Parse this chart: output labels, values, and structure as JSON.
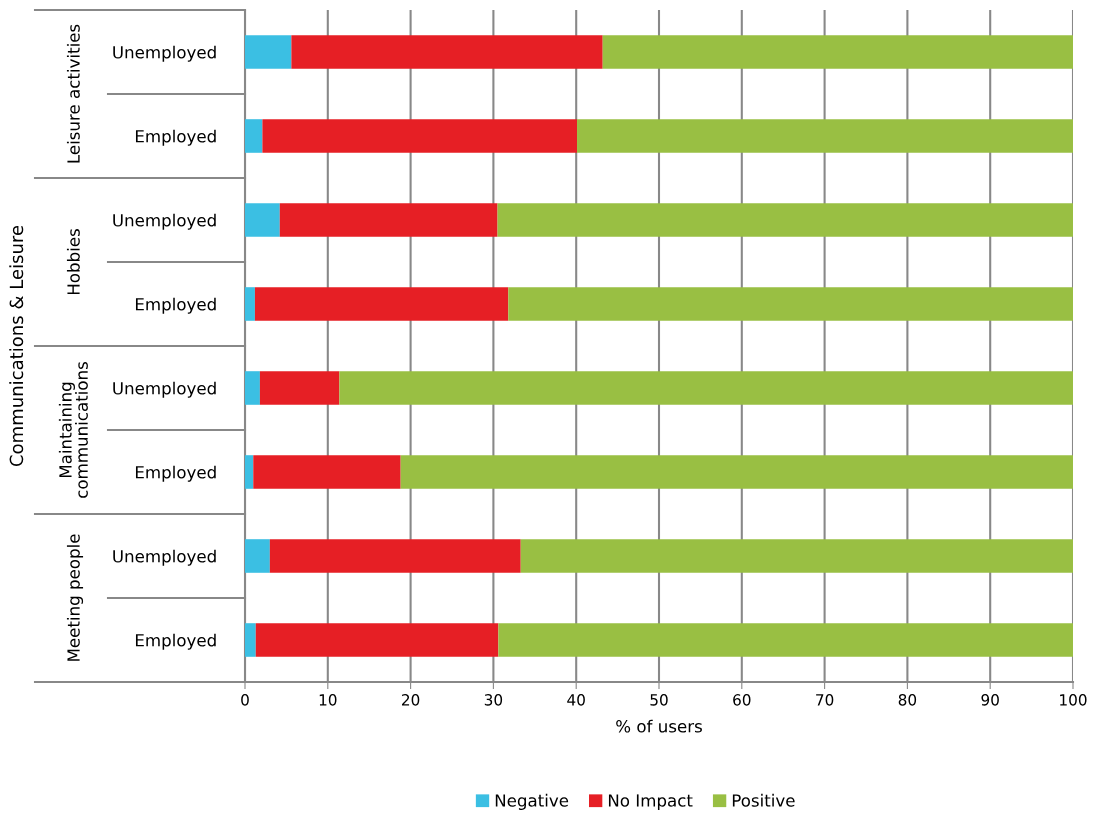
{
  "chart_data": {
    "type": "bar",
    "orientation": "horizontal",
    "stacked": true,
    "ylabel": "Communications & Leisure",
    "xlabel": "% of users",
    "categories": [
      "Unemployed",
      "Employed",
      "Unemployed",
      "Employed",
      "Unemployed",
      "Employed",
      "Unemployed",
      "Employed"
    ],
    "annotations": [
      "Leisure activities",
      "Hobbies",
      "Maintaining\ncommunications",
      "Meeting people"
    ],
    "series": [
      {
        "name": "Negative",
        "color": "#3bbfe3",
        "values": [
          5.6,
          2.1,
          4.2,
          1.2,
          1.8,
          1.0,
          3.0,
          1.3
        ]
      },
      {
        "name": "No Impact",
        "color": "#e61f25",
        "values": [
          37.6,
          38.0,
          26.3,
          30.6,
          9.6,
          17.8,
          30.3,
          29.3
        ]
      },
      {
        "name": "Positive",
        "color": "#99bf43",
        "values": [
          56.8,
          59.9,
          69.5,
          68.2,
          88.6,
          81.2,
          66.7,
          69.4
        ]
      }
    ],
    "xlim": [
      0,
      100
    ],
    "xticks": [
      0,
      10,
      20,
      30,
      40,
      50,
      60,
      70,
      80,
      90,
      100
    ],
    "grid": "x",
    "legend": "bottom"
  }
}
